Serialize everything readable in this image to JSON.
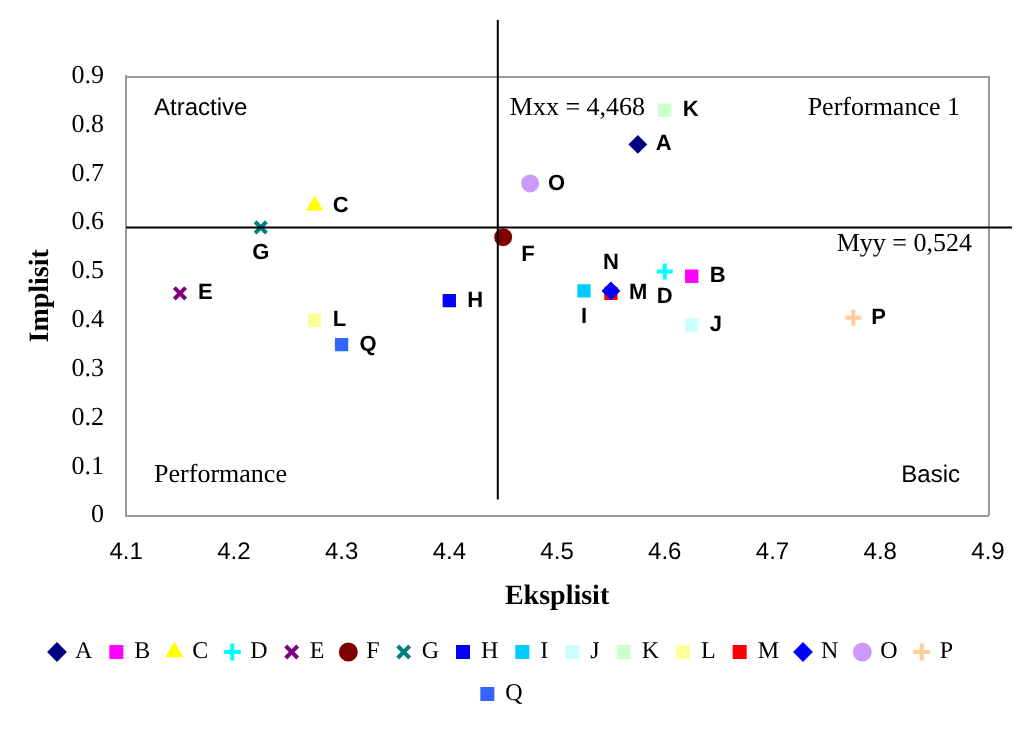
{
  "chart_data": {
    "type": "scatter",
    "xlabel": "Eksplisit",
    "ylabel": "Implisit",
    "xlim": [
      4.1,
      4.9
    ],
    "xticks": [
      4.1,
      4.2,
      4.3,
      4.4,
      4.5,
      4.6,
      4.7,
      4.8,
      4.9
    ],
    "ylim": [
      0,
      0.9
    ],
    "yticks": [
      0,
      0.1,
      0.2,
      0.3,
      0.4,
      0.5,
      0.6,
      0.7,
      0.8,
      0.9
    ],
    "grid": false,
    "legend": "bottom",
    "ref_lines": [
      {
        "axis": "x",
        "value": 4.445
      },
      {
        "axis": "y",
        "value": 0.59
      }
    ],
    "annotations": [
      "Atractive",
      "Performance 1",
      "Performance",
      "Basic",
      "Mxx = 4,468",
      "Myy = 0,524"
    ],
    "series": [
      {
        "name": "A",
        "color": "#000080",
        "marker": "diamond",
        "x": [
          4.575
        ],
        "values": [
          0.76
        ]
      },
      {
        "name": "B",
        "color": "#ff00ff",
        "marker": "square",
        "x": [
          4.625
        ],
        "values": [
          0.49
        ]
      },
      {
        "name": "C",
        "color": "#ffff00",
        "marker": "triangle",
        "x": [
          4.275
        ],
        "values": [
          0.635
        ]
      },
      {
        "name": "D",
        "color": "#00ffff",
        "marker": "cross",
        "x": [
          4.6
        ],
        "values": [
          0.5
        ]
      },
      {
        "name": "E",
        "color": "#800080",
        "marker": "cross",
        "x": [
          4.15
        ],
        "values": [
          0.455
        ]
      },
      {
        "name": "F",
        "color": "#800000",
        "marker": "circle",
        "x": [
          4.45
        ],
        "values": [
          0.57
        ]
      },
      {
        "name": "G",
        "color": "#008080",
        "marker": "cross",
        "x": [
          4.225
        ],
        "values": [
          0.59
        ]
      },
      {
        "name": "H",
        "color": "#0000ff",
        "marker": "square",
        "x": [
          4.4
        ],
        "values": [
          0.44
        ]
      },
      {
        "name": "I",
        "color": "#00ccff",
        "marker": "square",
        "x": [
          4.525
        ],
        "values": [
          0.46
        ]
      },
      {
        "name": "J",
        "color": "#ccffff",
        "marker": "square",
        "x": [
          4.625
        ],
        "values": [
          0.39
        ]
      },
      {
        "name": "K",
        "color": "#ccffcc",
        "marker": "square",
        "x": [
          4.6
        ],
        "values": [
          0.83
        ]
      },
      {
        "name": "L",
        "color": "#ffff99",
        "marker": "square",
        "x": [
          4.275
        ],
        "values": [
          0.4
        ]
      },
      {
        "name": "M",
        "color": "#ff0000",
        "marker": "square",
        "x": [
          4.55
        ],
        "values": [
          0.455
        ]
      },
      {
        "name": "N",
        "color": "#0000ff",
        "marker": "diamond",
        "x": [
          4.55
        ],
        "values": [
          0.46
        ]
      },
      {
        "name": "O",
        "color": "#cc99ff",
        "marker": "circle",
        "x": [
          4.475
        ],
        "values": [
          0.68
        ]
      },
      {
        "name": "P",
        "color": "#ffcc99",
        "marker": "cross",
        "x": [
          4.775
        ],
        "values": [
          0.405
        ]
      },
      {
        "name": "Q",
        "color": "#3366ff",
        "marker": "square",
        "x": [
          4.3
        ],
        "values": [
          0.35
        ]
      }
    ]
  }
}
